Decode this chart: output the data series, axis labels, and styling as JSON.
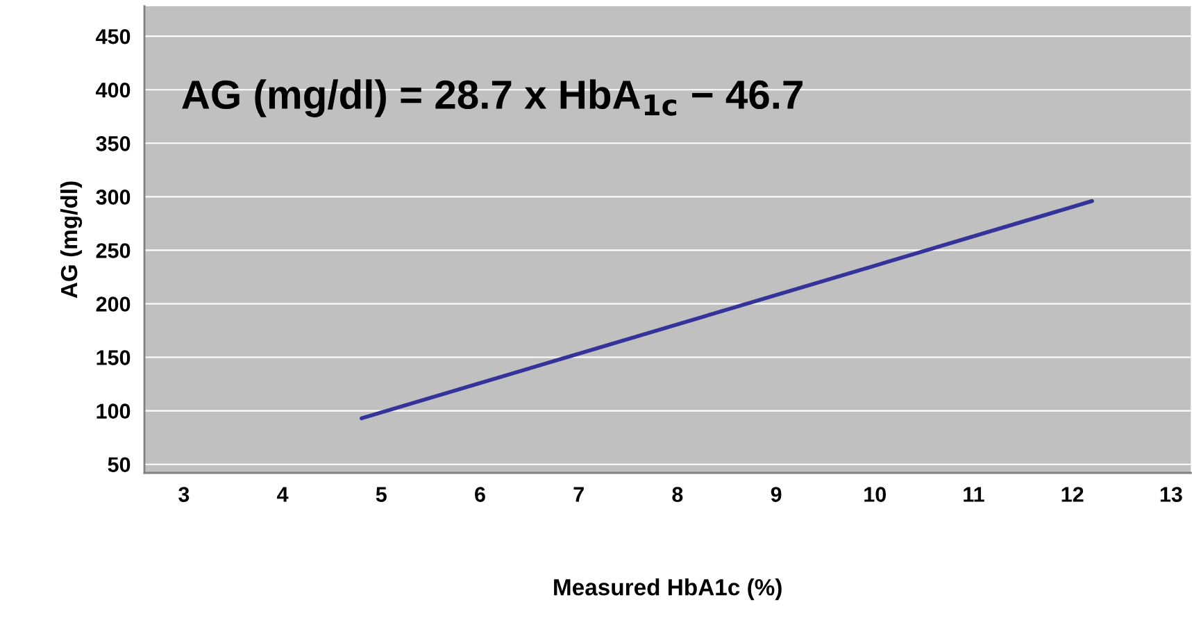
{
  "chart_data": {
    "type": "line",
    "xlabel": "Measured HbA1c (%)",
    "ylabel": "AG (mg/dl)",
    "annotations": [
      "AG (mg/dl) = 28.7 x HbA$_{1c}$ − 46.7"
    ],
    "x": [
      4.8,
      12.2
    ],
    "series": [
      {
        "color": "#333399",
        "values": [
          93,
          296
        ]
      }
    ],
    "xlim": [
      2.6,
      13.2
    ],
    "xticks": [
      3,
      4,
      5,
      6,
      7,
      8,
      9,
      10,
      11,
      12,
      13
    ],
    "ylim": [
      42,
      478
    ],
    "yticks": [
      50,
      100,
      150,
      200,
      250,
      300,
      350,
      400,
      450
    ],
    "grid": "y",
    "marker": "none",
    "line_style": "solid"
  }
}
